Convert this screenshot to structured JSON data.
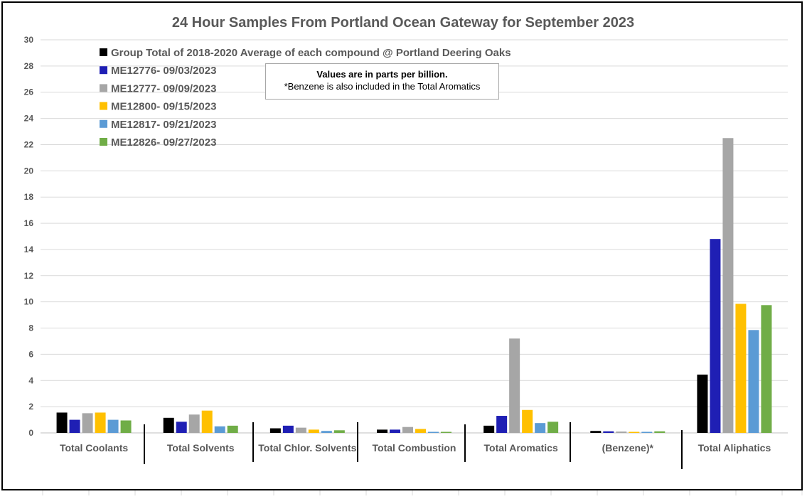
{
  "chart_data": {
    "type": "bar",
    "title": "24 Hour Samples From Portland Ocean Gateway for September 2023",
    "xlabel": "",
    "ylabel": "",
    "ylim": [
      0,
      30
    ],
    "yticks": [
      0,
      2,
      4,
      6,
      8,
      10,
      12,
      14,
      16,
      18,
      20,
      22,
      24,
      26,
      28,
      30
    ],
    "grid": true,
    "legend_position": "top-left",
    "categories": [
      "Total Coolants",
      "Total Solvents",
      "Total Chlor. Solvents",
      "Total Combustion",
      "Total Aromatics",
      "(Benzene)*",
      "Total Aliphatics"
    ],
    "series": [
      {
        "name": "Group Total of 2018-2020 Average of each compound @ Portland Deering Oaks",
        "color": "#000000",
        "values": [
          1.55,
          1.15,
          0.35,
          0.25,
          0.55,
          0.15,
          4.45
        ]
      },
      {
        "name": "ME12776- 09/03/2023",
        "color": "#1f1fb4",
        "values": [
          1.0,
          0.85,
          0.55,
          0.25,
          1.3,
          0.12,
          14.8
        ]
      },
      {
        "name": "ME12777- 09/09/2023",
        "color": "#a6a6a6",
        "values": [
          1.5,
          1.4,
          0.4,
          0.45,
          7.2,
          0.1,
          22.5
        ]
      },
      {
        "name": "ME12800- 09/15/2023",
        "color": "#ffc000",
        "values": [
          1.55,
          1.7,
          0.25,
          0.3,
          1.75,
          0.08,
          9.85
        ]
      },
      {
        "name": "ME12817- 09/21/2023",
        "color": "#5b9bd5",
        "values": [
          1.0,
          0.5,
          0.15,
          0.08,
          0.75,
          0.08,
          7.85
        ]
      },
      {
        "name": "ME12826- 09/27/2023",
        "color": "#70ad47",
        "values": [
          0.95,
          0.55,
          0.2,
          0.08,
          0.85,
          0.12,
          9.75
        ]
      }
    ],
    "annotation": {
      "line1": "Values are in parts per billion.",
      "line2": "*Benzene is also included in the Total Aromatics"
    }
  }
}
